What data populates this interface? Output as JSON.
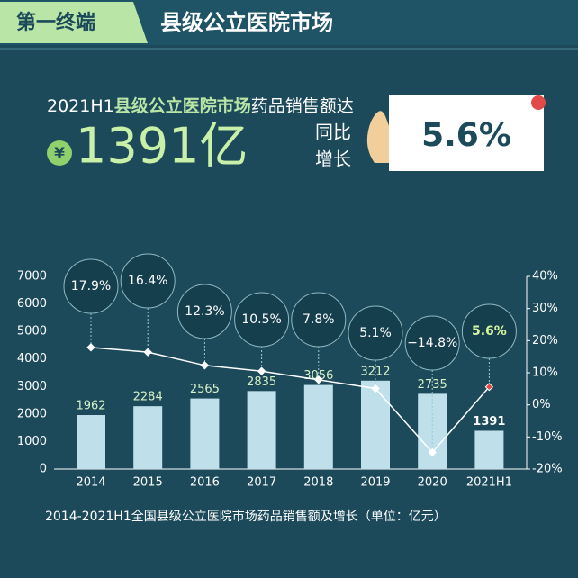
{
  "header": {
    "tag": "第一终端",
    "title": "县级公立医院市场"
  },
  "headline": {
    "period": "2021H1",
    "market": "县级公立医院市场",
    "suffix": "药品销售额达",
    "currency": "¥",
    "amount": "1391亿",
    "growth_label_1": "同比",
    "growth_label_2": "增长",
    "growth": "5.6%"
  },
  "chart_data": {
    "type": "bar",
    "caption": "2014-2021H1全国县级公立医院市场药品销售额及增长（单位：亿元）",
    "categories": [
      "2014",
      "2015",
      "2016",
      "2017",
      "2018",
      "2019",
      "2020",
      "2021H1"
    ],
    "series": [
      {
        "name": "药品销售额",
        "type": "bar",
        "color": "#bfe0ea",
        "values": [
          1962,
          2284,
          2565,
          2835,
          3056,
          3212,
          2735,
          1391
        ]
      },
      {
        "name": "增长",
        "type": "line",
        "axis": "y2",
        "color": "#ffffff",
        "values": [
          17.9,
          16.4,
          12.3,
          10.5,
          7.8,
          5.1,
          -14.8,
          5.6
        ],
        "value_labels": [
          "17.9%",
          "16.4%",
          "12.3%",
          "10.5%",
          "7.8%",
          "5.1%",
          "−14.8%",
          "5.6%"
        ]
      }
    ],
    "ylim": [
      0,
      7000
    ],
    "yticks": [
      0,
      1000,
      2000,
      3000,
      4000,
      5000,
      6000,
      7000
    ],
    "y2lim": [
      -20,
      40
    ],
    "y2ticks": [
      {
        "value": -20,
        "label": "-20%"
      },
      {
        "value": -10,
        "label": "-10%"
      },
      {
        "value": 0,
        "label": "0%"
      },
      {
        "value": 10,
        "label": "10%"
      },
      {
        "value": 20,
        "label": "20%"
      },
      {
        "value": 30,
        "label": "30%"
      },
      {
        "value": 40,
        "label": "40%"
      }
    ],
    "grid": false
  }
}
